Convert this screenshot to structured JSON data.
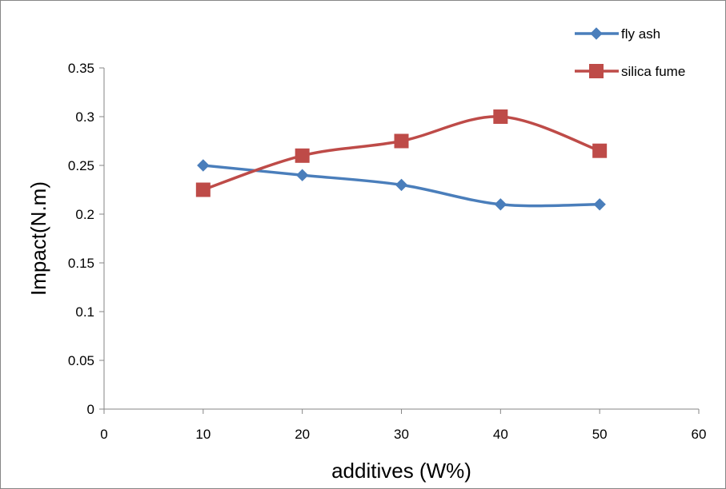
{
  "chart_data": {
    "type": "line",
    "title": "",
    "xlabel": "additives (W%)",
    "ylabel": "Impact(N.m)",
    "xlim": [
      0,
      60
    ],
    "ylim": [
      0,
      0.35
    ],
    "xticks": [
      "0",
      "10",
      "20",
      "30",
      "40",
      "50",
      "60"
    ],
    "yticks": [
      "0",
      "0.05",
      "0.1",
      "0.15",
      "0.2",
      "0.25",
      "0.3",
      "0.35"
    ],
    "grid": false,
    "smooth": true,
    "legend_position": "top-right",
    "series": [
      {
        "name": "fly ash",
        "color": "#4a7ebb",
        "marker": "diamond",
        "x": [
          10,
          20,
          30,
          40,
          50
        ],
        "values": [
          0.25,
          0.24,
          0.23,
          0.21,
          0.21
        ]
      },
      {
        "name": "silica fume",
        "color": "#be4b48",
        "marker": "square",
        "x": [
          10,
          20,
          30,
          40,
          50
        ],
        "values": [
          0.225,
          0.26,
          0.275,
          0.3,
          0.265
        ]
      }
    ]
  }
}
